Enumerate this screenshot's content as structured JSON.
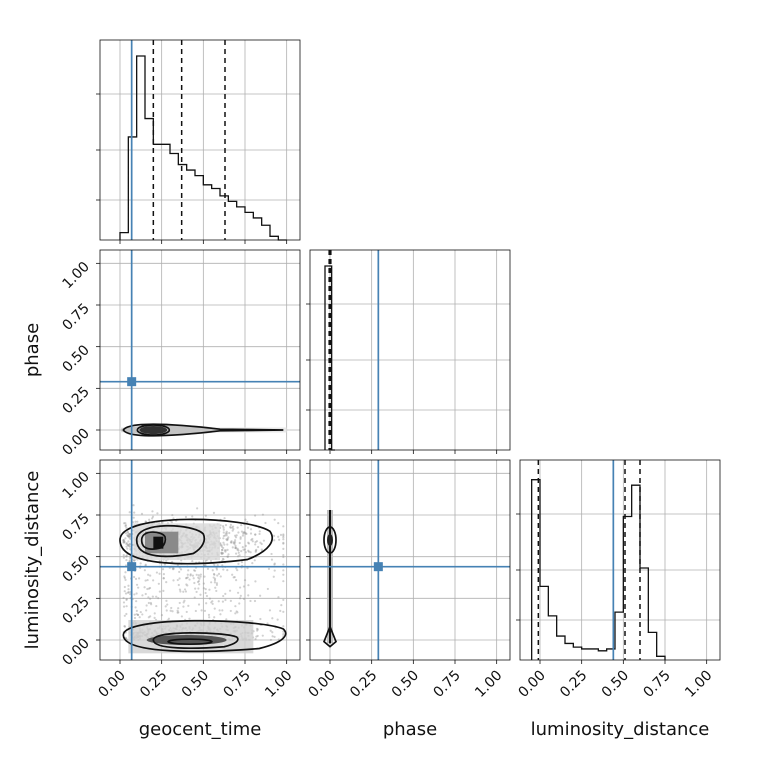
{
  "chart_data": {
    "type": "corner",
    "parameters": [
      "geocent_time",
      "phase",
      "luminosity_distance"
    ],
    "axis_range": [
      -0.12,
      1.08
    ],
    "ticks": [
      0.0,
      0.25,
      0.5,
      0.75,
      1.0
    ],
    "tick_labels": [
      "0.00",
      "0.25",
      "0.50",
      "0.75",
      "1.00"
    ],
    "grid": true,
    "colors": {
      "truth": "#4682b4",
      "histogram": "#111111",
      "density": "#000000"
    },
    "truths": {
      "geocent_time": 0.07,
      "phase": 0.29,
      "luminosity_distance": 0.44
    },
    "histograms": {
      "geocent_time": {
        "bin_edges": [
          0.0,
          0.05,
          0.1,
          0.15,
          0.2,
          0.25,
          0.3,
          0.35,
          0.4,
          0.45,
          0.5,
          0.55,
          0.6,
          0.65,
          0.7,
          0.75,
          0.8,
          0.85,
          0.9,
          0.95,
          1.0
        ],
        "counts": [
          0.04,
          0.56,
          1.0,
          0.66,
          0.52,
          0.52,
          0.47,
          0.41,
          0.38,
          0.35,
          0.3,
          0.28,
          0.24,
          0.21,
          0.18,
          0.15,
          0.12,
          0.08,
          0.02,
          0.0
        ],
        "quantiles": [
          0.2,
          0.37,
          0.63
        ]
      },
      "phase": {
        "bin_edges": [
          -0.03,
          -0.01,
          0.01,
          0.03
        ],
        "counts": [
          1.0,
          1.0,
          0.0
        ],
        "quantiles": [
          -0.005,
          0.0,
          0.005
        ]
      },
      "luminosity_distance": {
        "bin_edges": [
          -0.05,
          0.0,
          0.05,
          0.1,
          0.15,
          0.2,
          0.25,
          0.3,
          0.35,
          0.4,
          0.45,
          0.5,
          0.55,
          0.6,
          0.65,
          0.7,
          0.75
        ],
        "counts": [
          0.98,
          0.4,
          0.24,
          0.13,
          0.09,
          0.07,
          0.06,
          0.06,
          0.05,
          0.06,
          0.26,
          0.78,
          0.95,
          0.5,
          0.15,
          0.02
        ],
        "quantiles": [
          -0.01,
          0.51,
          0.6
        ]
      }
    }
  }
}
